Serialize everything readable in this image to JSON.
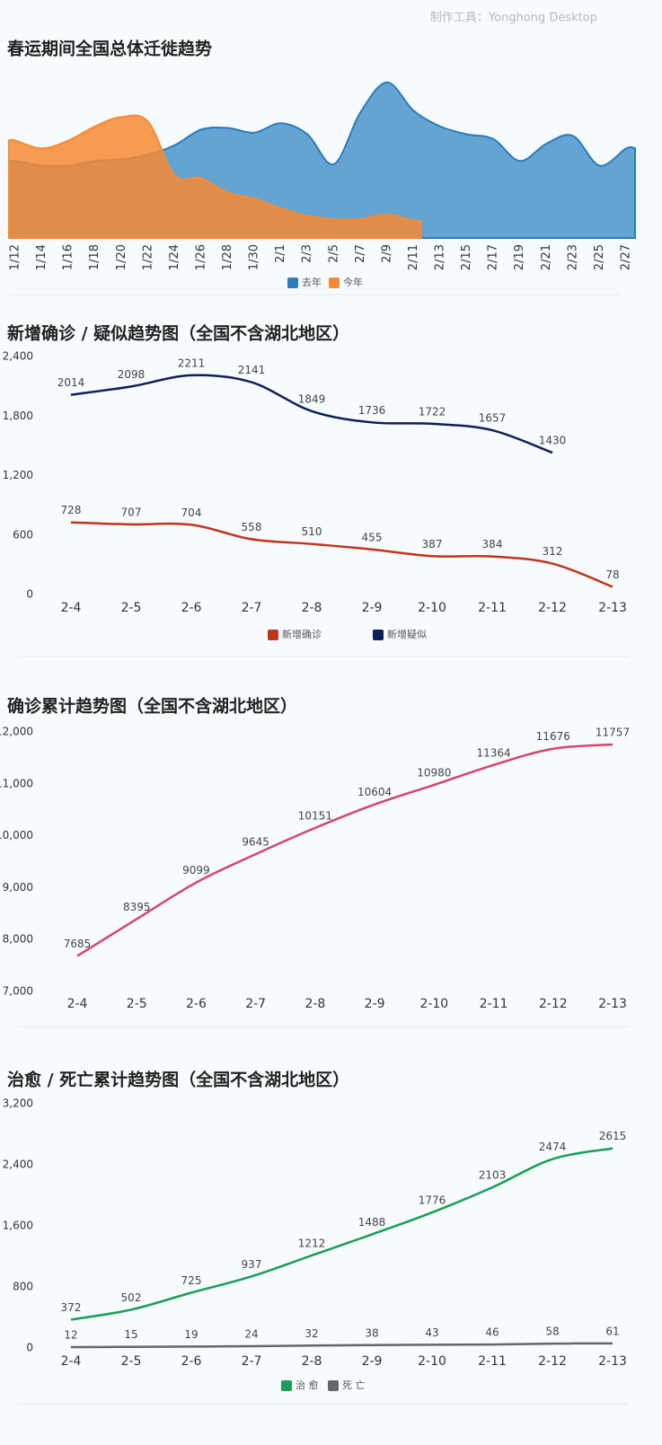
{
  "credit": "制作工具：Yonghong Desktop",
  "chart_data": [
    {
      "type": "area",
      "title": "春运期间全国总体迁徙趋势",
      "categories": [
        "1/12",
        "1/14",
        "1/16",
        "1/18",
        "1/20",
        "1/22",
        "1/24",
        "1/26",
        "1/28",
        "1/30",
        "2/1",
        "2/3",
        "2/5",
        "2/7",
        "2/9",
        "2/11",
        "2/13",
        "2/15",
        "2/17",
        "2/19",
        "2/21",
        "2/23",
        "2/25",
        "2/27"
      ],
      "ylim": [
        0,
        100
      ],
      "series": [
        {
          "name": "去年",
          "color": "#2b7bbd",
          "fill": "#5b9fd1",
          "values": [
            49,
            46,
            46,
            49,
            50,
            53,
            59,
            69,
            70,
            67,
            73,
            66,
            47,
            80,
            99,
            81,
            71,
            66,
            63,
            49,
            60,
            65,
            46,
            57
          ]
        },
        {
          "name": "今年",
          "color": "#f68a33",
          "fill": "#f68a33",
          "values": [
            62,
            57,
            62,
            71,
            77,
            74,
            40,
            38,
            29,
            25,
            19,
            14,
            12,
            12,
            15,
            11,
            null,
            null,
            null,
            null,
            null,
            null,
            null,
            null
          ]
        }
      ]
    },
    {
      "type": "line",
      "title": "新增确诊 / 疑似趋势图（全国不含湖北地区）",
      "data_labels": true,
      "categories": [
        "2-4",
        "2-5",
        "2-6",
        "2-7",
        "2-8",
        "2-9",
        "2-10",
        "2-11",
        "2-12",
        "2-13"
      ],
      "ylim": [
        0,
        2400
      ],
      "yticks": [
        0,
        600,
        {
          "value": 1200,
          "label": "1,200"
        },
        {
          "value": 1800,
          "label": "1,800"
        },
        {
          "value": 2400,
          "label": "2,400"
        }
      ],
      "series": [
        {
          "name": "新增确诊",
          "color": "#c0341d",
          "values": [
            728,
            707,
            704,
            558,
            510,
            455,
            387,
            384,
            312,
            78
          ]
        },
        {
          "name": "新增疑似",
          "color": "#0c1f5c",
          "values": [
            2014,
            2098,
            2211,
            2141,
            1849,
            1736,
            1722,
            1657,
            1430,
            null
          ]
        }
      ]
    },
    {
      "type": "line",
      "title": "确诊累计趋势图（全国不含湖北地区）",
      "data_labels": true,
      "categories": [
        "2-4",
        "2-5",
        "2-6",
        "2-7",
        "2-8",
        "2-9",
        "2-10",
        "2-11",
        "2-12",
        "2-13"
      ],
      "ylim": [
        7000,
        12000
      ],
      "yticks": [
        {
          "value": 7000,
          "label": "7,000"
        },
        {
          "value": 8000,
          "label": "8,000"
        },
        {
          "value": 9000,
          "label": "9,000"
        },
        {
          "value": 10000,
          "label": "10,000"
        },
        {
          "value": 11000,
          "label": "11,000"
        },
        {
          "value": 12000,
          "label": "12,000"
        }
      ],
      "series": [
        {
          "color": "#d6456a",
          "values": [
            7685,
            8395,
            9099,
            9645,
            10151,
            10604,
            10980,
            11364,
            11676,
            11757
          ]
        }
      ]
    },
    {
      "type": "line",
      "title": "治愈 / 死亡累计趋势图（全国不含湖北地区）",
      "data_labels": true,
      "categories": [
        "2-4",
        "2-5",
        "2-6",
        "2-7",
        "2-8",
        "2-9",
        "2-10",
        "2-11",
        "2-12",
        "2-13"
      ],
      "ylim": [
        0,
        3200
      ],
      "yticks": [
        0,
        800,
        {
          "value": 1600,
          "label": "1,600"
        },
        {
          "value": 2400,
          "label": "2,400"
        },
        {
          "value": 3200,
          "label": "3,200"
        }
      ],
      "series": [
        {
          "name": "治 愈",
          "color": "#1a9e58",
          "values": [
            372,
            502,
            725,
            937,
            1212,
            1488,
            1776,
            2103,
            2474,
            2615
          ]
        },
        {
          "name": "死 亡",
          "color": "#666666",
          "values": [
            12,
            15,
            19,
            24,
            32,
            38,
            43,
            46,
            58,
            61
          ]
        }
      ]
    }
  ]
}
